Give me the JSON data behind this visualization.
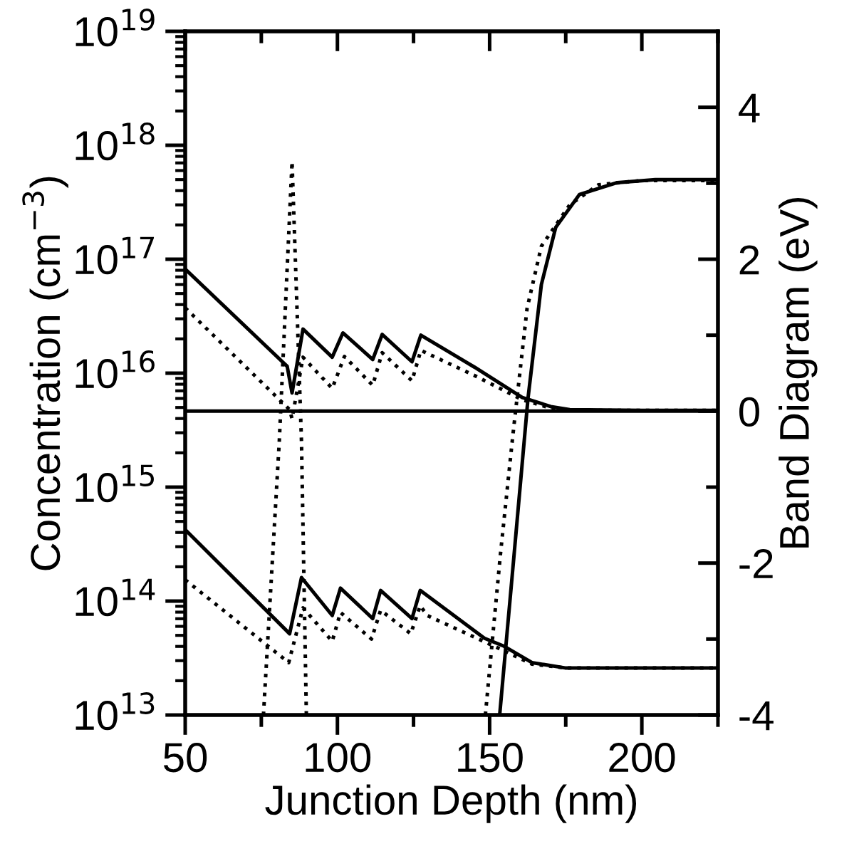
{
  "chart_data": {
    "type": "line",
    "xlabel": "Junction Depth (nm)",
    "ylabel": "Concentration (cm$^{−3}$)",
    "y2label": "Band Diagram (eV)",
    "xlim": [
      50,
      225
    ],
    "xticks": [
      50,
      {
        "value": 75,
        "label": null
      },
      100,
      {
        "value": 125,
        "label": null
      },
      150,
      {
        "value": 175,
        "label": null
      },
      200,
      {
        "value": 225,
        "label": null
      }
    ],
    "ylim": [
      10000000000000.0,
      1e+19
    ],
    "log": "y",
    "yticks": [
      {
        "value": 10000000000000.0,
        "label": "10$^{13}$"
      },
      {
        "value": 100000000000000.0,
        "label": "10$^{14}$"
      },
      {
        "value": 1000000000000000.0,
        "label": "10$^{15}$"
      },
      {
        "value": 1e+16,
        "label": "10$^{16}$"
      },
      {
        "value": 1e+17,
        "label": "10$^{17}$"
      },
      {
        "value": 1e+18,
        "label": "10$^{18}$"
      },
      {
        "value": 1e+19,
        "label": "10$^{19}$"
      }
    ],
    "y2lim": [
      -4,
      5
    ],
    "y2ticks": [
      -4,
      {
        "value": -3,
        "label": null
      },
      -2,
      {
        "value": -1,
        "label": null
      },
      0,
      {
        "value": 1,
        "label": null
      },
      2,
      {
        "value": 3,
        "label": null
      },
      4
    ],
    "grid": false,
    "marker": "none",
    "series": [
      {
        "color": "#000000",
        "line_style": "dotted",
        "x": [
          75.7,
          80.9,
          85.1,
          88.2,
          89.8
        ],
        "values": [
          10000000000000.0,
          2500000000000000.0,
          7.2e+17,
          2500000000000000.0,
          10000000000000.0
        ]
      },
      {
        "color": "#000000",
        "line_style": "dotted",
        "x": [
          148.6,
          153.5,
          157.6,
          162.3,
          167,
          176.3,
          185.7,
          199.7,
          225
        ],
        "values": [
          10000000000000.0,
          250000000000000.0,
          2800000000000000.0,
          3.7e+16,
          1.3e+17,
          3e+17,
          4.5e+17,
          4.9e+17,
          4.9e+17
        ]
      },
      {
        "color": "#000000",
        "line_style": "solid",
        "x": [
          153.3,
          158,
          162.6,
          167,
          171.7,
          179.5,
          191.9,
          204.4,
          225
        ],
        "values": [
          10000000000000.0,
          250000000000000.0,
          6000000000000000.0,
          6e+16,
          1.9e+17,
          3.7e+17,
          4.7e+17,
          5e+17,
          5e+17
        ]
      },
      {
        "color": "#000000",
        "line_style": "solid",
        "axis": "y2",
        "x": [
          50,
          83.5,
          85.1,
          88.7,
          98.3,
          101.8,
          111.6,
          114.7,
          124.5,
          127.4,
          145,
          160.7,
          170.1,
          176.3,
          200,
          225
        ],
        "values": [
          1.87,
          0.59,
          0.24,
          1.08,
          0.71,
          1.03,
          0.68,
          1.01,
          0.65,
          1.0,
          0.58,
          0.18,
          0.06,
          0.02,
          0.01,
          0.01
        ]
      },
      {
        "color": "#000000",
        "line_style": "dotted",
        "axis": "y2",
        "x": [
          50,
          84.3,
          85.1,
          88.7,
          98.3,
          102.3,
          111.6,
          114.7,
          124.5,
          127.4,
          145,
          160.7,
          170.1,
          176.3,
          200,
          225
        ],
        "values": [
          1.36,
          0.02,
          -0.1,
          0.71,
          0.3,
          0.72,
          0.34,
          0.77,
          0.4,
          0.8,
          0.47,
          0.15,
          0.04,
          0.01,
          0.01,
          0.01
        ]
      },
      {
        "color": "#000000",
        "line_style": "solid",
        "axis": "y2",
        "x": [
          50,
          225
        ],
        "values": [
          0,
          0
        ]
      },
      {
        "color": "#000000",
        "line_style": "solid",
        "axis": "y2",
        "x": [
          50,
          84.3,
          88.2,
          98.3,
          101,
          111.6,
          114.2,
          124.5,
          127.2,
          148.3,
          154.5,
          163.9,
          174.8,
          225
        ],
        "values": [
          -1.56,
          -2.93,
          -2.19,
          -2.69,
          -2.33,
          -2.73,
          -2.36,
          -2.73,
          -2.36,
          -2.99,
          -3.09,
          -3.31,
          -3.38,
          -3.38
        ]
      },
      {
        "color": "#000000",
        "line_style": "dotted",
        "axis": "y2",
        "x": [
          50,
          84,
          88.7,
          98.3,
          101,
          111.2,
          114.2,
          124.1,
          127.2,
          129.5,
          154.5,
          163.9,
          174.8,
          225
        ],
        "values": [
          -2.22,
          -3.31,
          -2.59,
          -3.03,
          -2.65,
          -3.0,
          -2.62,
          -2.93,
          -2.56,
          -2.69,
          -3.15,
          -3.33,
          -3.38,
          -3.38
        ]
      }
    ]
  }
}
